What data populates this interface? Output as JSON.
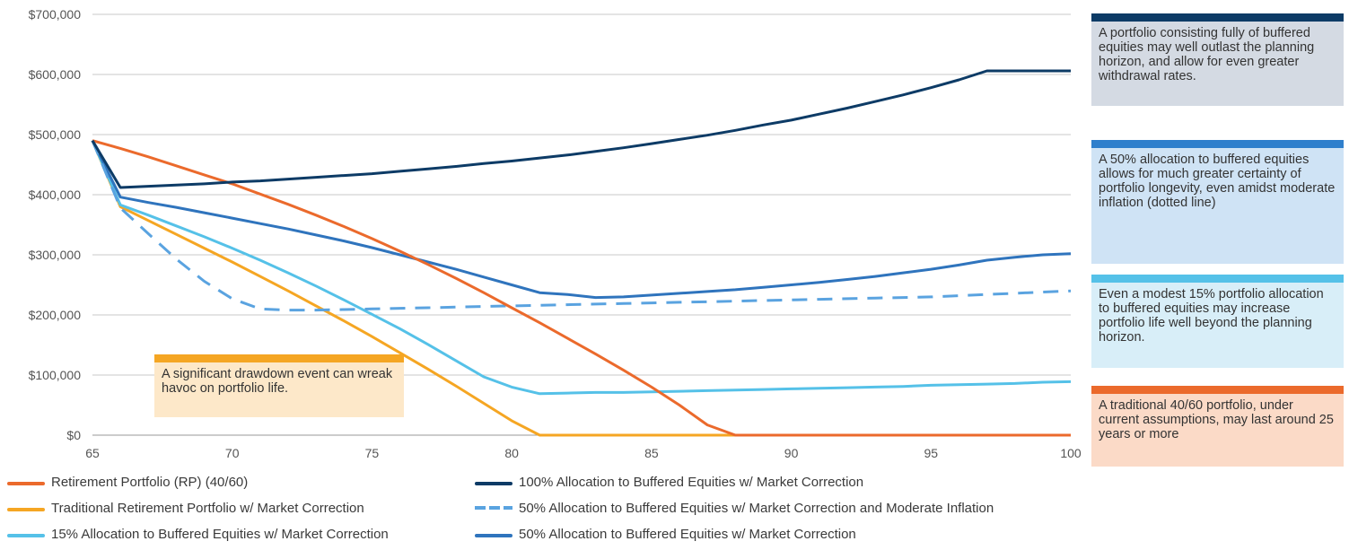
{
  "chart_data": {
    "type": "line",
    "x": [
      65,
      66,
      67,
      68,
      69,
      70,
      71,
      72,
      73,
      74,
      75,
      76,
      77,
      78,
      79,
      80,
      81,
      82,
      83,
      84,
      85,
      86,
      87,
      88,
      89,
      90,
      91,
      92,
      93,
      94,
      95,
      96,
      97,
      98,
      99,
      100
    ],
    "xticks": [
      65,
      70,
      75,
      80,
      85,
      90,
      95,
      100
    ],
    "xlim": [
      65,
      100
    ],
    "ylim": [
      0,
      700000
    ],
    "yticks": [
      0,
      100000,
      200000,
      300000,
      400000,
      500000,
      600000,
      700000
    ],
    "ytick_labels": [
      "$0",
      "$100,000",
      "$200,000",
      "$300,000",
      "$400,000",
      "$500,000",
      "$600,000",
      "$700,000"
    ],
    "xtick_labels": [
      "65",
      "70",
      "75",
      "80",
      "85",
      "90",
      "95",
      "100"
    ],
    "grid": "horizontal",
    "series": [
      {
        "name": "Retirement Portfolio (RP) (40/60)",
        "color": "#eb6a2c",
        "dash": "solid",
        "values": [
          490000,
          477000,
          463000,
          448000,
          433000,
          418000,
          401000,
          384000,
          366000,
          347000,
          327000,
          306000,
          284000,
          261000,
          237000,
          212000,
          187000,
          161000,
          135000,
          108000,
          80000,
          50000,
          17000,
          0,
          0,
          0,
          0,
          0,
          0,
          0,
          0,
          0,
          0,
          0,
          0,
          0
        ]
      },
      {
        "name": "Traditional Retirement Portfolio w/ Market Correction",
        "color": "#f5a623",
        "dash": "solid",
        "values": [
          490000,
          380000,
          357000,
          334000,
          311000,
          288000,
          264000,
          240000,
          215000,
          190000,
          164000,
          137000,
          110000,
          82000,
          53000,
          24000,
          0,
          0,
          0,
          0,
          0,
          0,
          0,
          0,
          0,
          0,
          0,
          0,
          0,
          0,
          0,
          0,
          0,
          0,
          0,
          0
        ]
      },
      {
        "name": "15% Allocation to Buffered Equities w/ Market Correction",
        "color": "#55c1e8",
        "dash": "solid",
        "values": [
          490000,
          383000,
          366000,
          348000,
          330000,
          311000,
          291000,
          270000,
          248000,
          225000,
          201000,
          177000,
          151000,
          124000,
          97000,
          80000,
          69000,
          70000,
          71000,
          71000,
          72000,
          73000,
          74000,
          75000,
          76000,
          77000,
          78000,
          79000,
          80000,
          81000,
          83000,
          84000,
          85000,
          86000,
          88000,
          89000
        ]
      },
      {
        "name": "100% Allocation to Buffered Equities w/ Market Correction",
        "color": "#0d3b66",
        "dash": "solid",
        "values": [
          490000,
          412000,
          414000,
          416000,
          418000,
          421000,
          423000,
          426000,
          429000,
          432000,
          435000,
          439000,
          443000,
          447000,
          452000,
          456000,
          461000,
          466000,
          472000,
          478000,
          485000,
          492000,
          499000,
          507000,
          516000,
          524000,
          534000,
          544000,
          555000,
          566000,
          578000,
          591000,
          606000,
          606000,
          606000,
          606000
        ]
      },
      {
        "name": "50% Allocation to Buffered Equities w/ Market Correction and Moderate Inflation",
        "color": "#5aa3e0",
        "dash": "dashed",
        "values": [
          490000,
          378000,
          335000,
          293000,
          256000,
          227000,
          210000,
          208000,
          208000,
          209000,
          210000,
          211000,
          212000,
          213000,
          214000,
          215000,
          216000,
          217000,
          218000,
          219000,
          220000,
          221000,
          222000,
          223000,
          224000,
          225000,
          226000,
          227000,
          228000,
          229000,
          230000,
          232000,
          234000,
          236000,
          238000,
          240000
        ]
      },
      {
        "name": "50% Allocation to Buffered Equities w/ Market Correction",
        "color": "#2f74bd",
        "dash": "solid",
        "values": [
          490000,
          396000,
          387000,
          379000,
          370000,
          361000,
          352000,
          343000,
          333000,
          323000,
          312000,
          300000,
          288000,
          276000,
          263000,
          250000,
          237000,
          234000,
          229000,
          230000,
          233000,
          236000,
          239000,
          242000,
          246000,
          250000,
          254000,
          259000,
          264000,
          270000,
          276000,
          283000,
          291000,
          296000,
          300000,
          302000
        ]
      }
    ]
  },
  "callouts": {
    "drawdown": {
      "text": "A significant drawdown event can wreak havoc on portfolio life.",
      "bar_color": "#f5a623",
      "bg_color": "#fde8c9"
    },
    "right": [
      {
        "text": "A portfolio consisting fully of buffered equities may well outlast the planning horizon, and allow for even greater withdrawal rates.",
        "bar_color": "#0d3b66",
        "bg_color": "#d4dae3"
      },
      {
        "text": "A 50% allocation to buffered equities allows for much greater certainty of portfolio longevity, even amidst moderate inflation (dotted line)",
        "bar_color": "#2f7fcc",
        "bg_color": "#cfe3f5"
      },
      {
        "text": "Even a modest 15% portfolio allocation to buffered equities may increase portfolio life well beyond the planning horizon.",
        "bar_color": "#55c1e8",
        "bg_color": "#d8eef8"
      },
      {
        "text": "A traditional 40/60 portfolio, under current assumptions, may last around 25 years or more",
        "bar_color": "#eb6a2c",
        "bg_color": "#fbdac7"
      }
    ]
  }
}
